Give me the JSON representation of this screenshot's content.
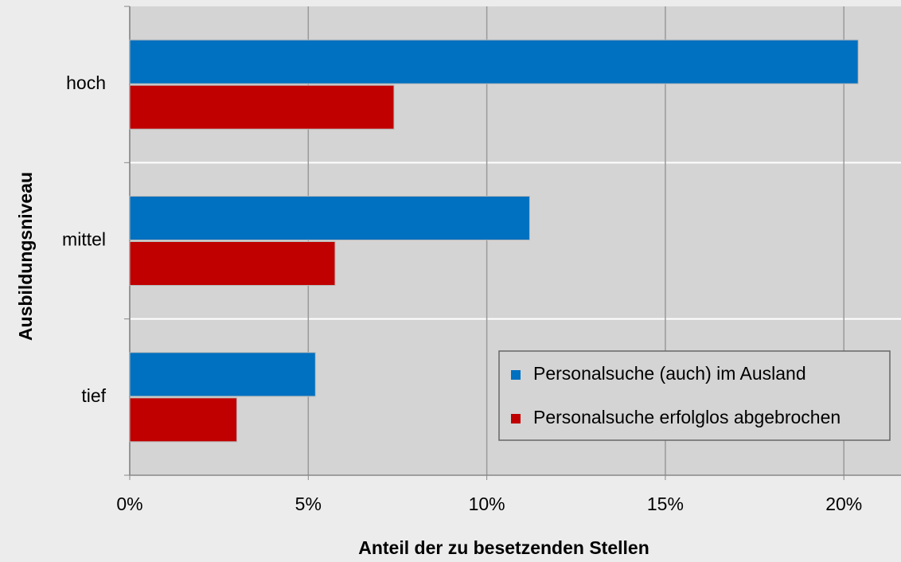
{
  "chart_data": {
    "type": "hbar",
    "categories": [
      "hoch",
      "mittel",
      "tief"
    ],
    "series": [
      {
        "name": "Personalsuche (auch) im Ausland",
        "color": "#0070c0",
        "values": [
          20.4,
          11.2,
          5.2
        ]
      },
      {
        "name": "Personalsuche erfolglos abgebrochen",
        "color": "#c00000",
        "values": [
          7.4,
          5.75,
          3.0
        ]
      }
    ],
    "xlabel": "Anteil der zu besetzenden Stellen",
    "ylabel": "Ausbildungsniveau",
    "xlim": [
      0,
      21.6
    ],
    "xticks": [
      {
        "value": 0,
        "label": "0%"
      },
      {
        "value": 5,
        "label": "5%"
      },
      {
        "value": 10,
        "label": "10%"
      },
      {
        "value": 15,
        "label": "15%"
      },
      {
        "value": 20,
        "label": "20%"
      }
    ],
    "grid": true,
    "legend": "lower right"
  }
}
